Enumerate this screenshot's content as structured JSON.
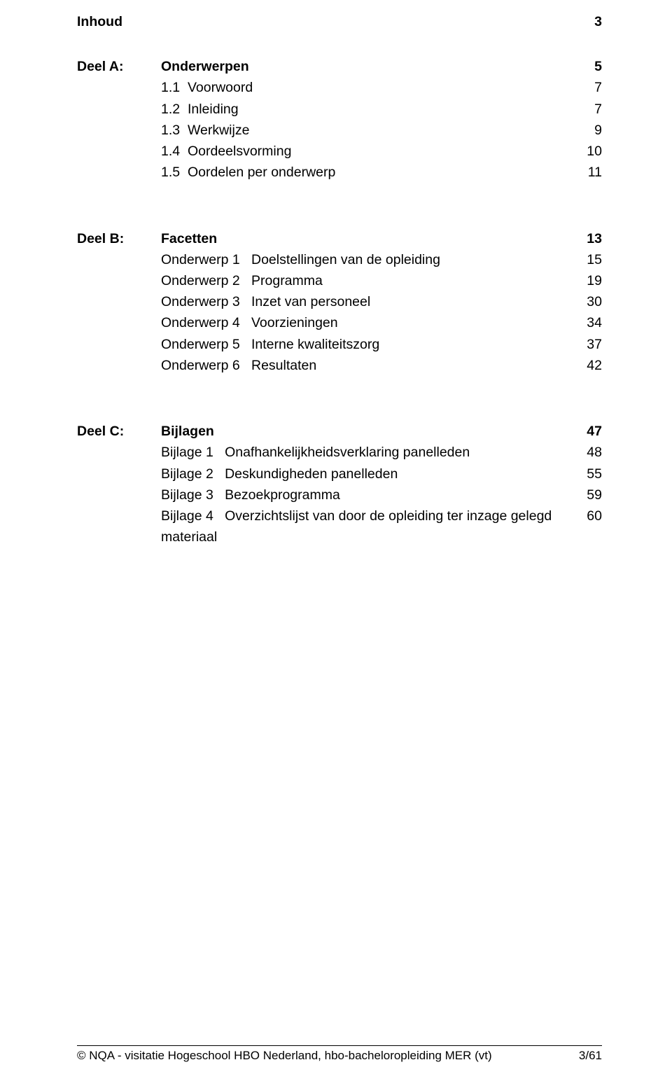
{
  "page": {
    "background_color": "#ffffff",
    "text_color": "#000000",
    "font_family": "Arial",
    "body_fontsize_pt": 15,
    "footer_fontsize_pt": 13
  },
  "toc_title": {
    "label": "Inhoud",
    "page": "3"
  },
  "deelA": {
    "heading_prefix": "Deel A:",
    "heading_label": "Onderwerpen",
    "heading_page": "5",
    "items": [
      {
        "num": "1.1",
        "label": "Voorwoord",
        "page": "7"
      },
      {
        "num": "1.2",
        "label": "Inleiding",
        "page": "7"
      },
      {
        "num": "1.3",
        "label": "Werkwijze",
        "page": "9"
      },
      {
        "num": "1.4",
        "label": "Oordeelsvorming",
        "page": "10"
      },
      {
        "num": "1.5",
        "label": "Oordelen per onderwerp",
        "page": "11"
      }
    ]
  },
  "deelB": {
    "heading_prefix": "Deel B:",
    "heading_label": "Facetten",
    "heading_page": "13",
    "items": [
      {
        "prefix": "Onderwerp 1",
        "label": "Doelstellingen van de opleiding",
        "page": "15"
      },
      {
        "prefix": "Onderwerp 2",
        "label": "Programma",
        "page": "19"
      },
      {
        "prefix": "Onderwerp 3",
        "label": "Inzet van personeel",
        "page": "30"
      },
      {
        "prefix": "Onderwerp 4",
        "label": "Voorzieningen",
        "page": "34"
      },
      {
        "prefix": "Onderwerp 5",
        "label": "Interne kwaliteitszorg",
        "page": "37"
      },
      {
        "prefix": "Onderwerp 6",
        "label": "Resultaten",
        "page": "42"
      }
    ]
  },
  "deelC": {
    "heading_prefix": "Deel C:",
    "heading_label": "Bijlagen",
    "heading_page": "47",
    "items": [
      {
        "prefix": "Bijlage 1",
        "label": "Onafhankelijkheidsverklaring panelleden",
        "page": "48"
      },
      {
        "prefix": "Bijlage 2",
        "label": "Deskundigheden panelleden",
        "page": "55"
      },
      {
        "prefix": "Bijlage 3",
        "label": "Bezoekprogramma",
        "page": "59"
      },
      {
        "prefix": "Bijlage 4",
        "label": "Overzichtslijst van door de opleiding ter inzage gelegd materiaal",
        "page": "60"
      }
    ]
  },
  "footer": {
    "left": "© NQA - visitatie Hogeschool HBO Nederland, hbo-bacheloropleiding MER (vt)",
    "right": "3/61"
  }
}
